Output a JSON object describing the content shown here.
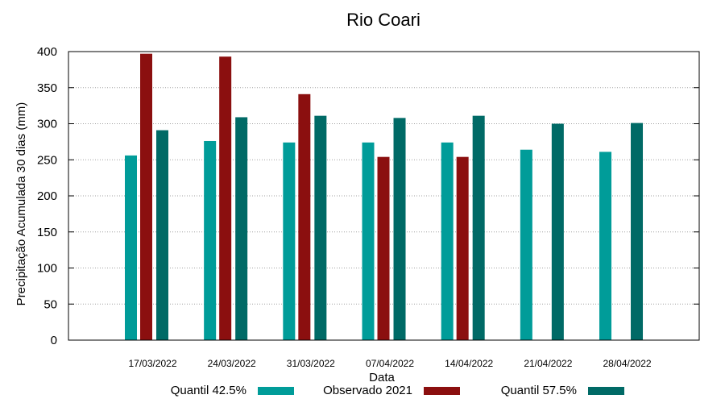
{
  "chart_data": {
    "type": "bar",
    "title": "Rio Coari",
    "xlabel": "Data",
    "ylabel": "Precipitação Acumulada 30 dias (mm)",
    "ylim": [
      0,
      400
    ],
    "yticks": [
      0,
      50,
      100,
      150,
      200,
      250,
      300,
      350,
      400
    ],
    "grid": true,
    "legend_position": "bottom",
    "categories": [
      "17/03/2022",
      "24/03/2022",
      "31/03/2022",
      "07/04/2022",
      "14/04/2022",
      "21/04/2022",
      "28/04/2022"
    ],
    "series": [
      {
        "name": "Quantil 42.5%",
        "color": "#009c99",
        "values": [
          256,
          276,
          274,
          274,
          274,
          264,
          261
        ]
      },
      {
        "name": "Observado 2021",
        "color": "#8b0f0f",
        "values": [
          397,
          393,
          341,
          254,
          254,
          null,
          null
        ]
      },
      {
        "name": "Quantil 57.5%",
        "color": "#006a66",
        "values": [
          291,
          309,
          311,
          308,
          311,
          300,
          301
        ]
      }
    ]
  }
}
